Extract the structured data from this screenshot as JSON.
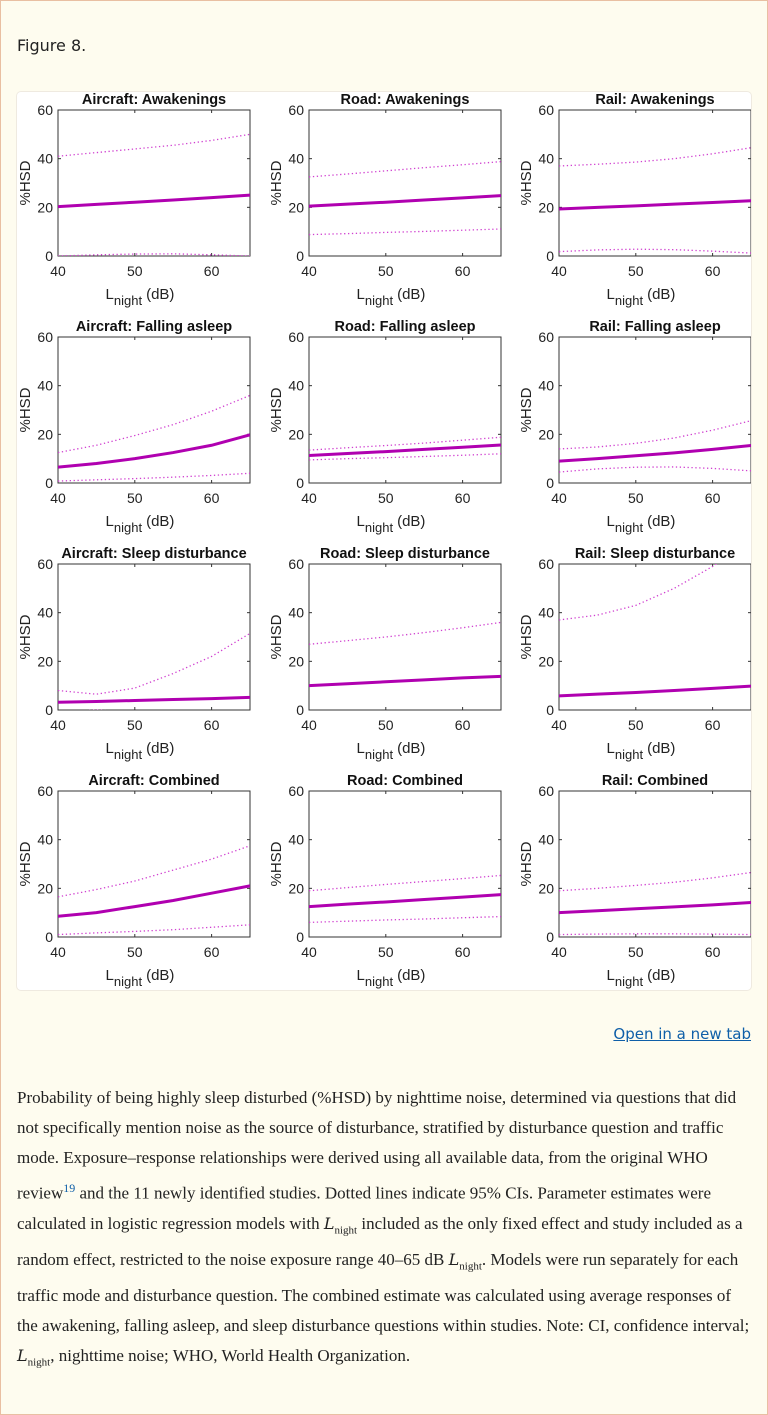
{
  "figure_label": "Figure 8.",
  "open_link": "Open in a new tab",
  "caption": {
    "p1": "Probability of being highly sleep disturbed (%HSD) by nighttime noise, determined via questions that did not specifically mention noise as the source of disturbance, stratified by disturbance question and traffic mode. Exposure–response relationships were derived using all available data, from the original WHO review",
    "ref": "19",
    "p2": " and the 11 newly identified studies. Dotted lines indicate 95% CIs. Parameter estimates were calculated in logistic regression models with ",
    "p3": " included as the only fixed effect and study included as a random effect, restricted to the noise exposure range 40–65 dB ",
    "p4": ". Models were run separately for each traffic mode and disturbance question. The combined estimate was calculated using average responses of the awakening, falling asleep, and sleep disturbance questions within studies. Note: CI, confidence interval; ",
    "p5": ", nighttime noise; WHO, World Health Organization.",
    "math_L": "L",
    "math_sub": "night"
  },
  "colors": {
    "series": "#b000b0",
    "ci": "#d040d0"
  },
  "chart_data": [
    {
      "type": "line",
      "title": "Aircraft: Awakenings",
      "xlabel": "L",
      "xlabel_sub": "night",
      "xlabel_unit": "(dB)",
      "ylabel": "%HSD",
      "xlim": [
        40,
        65
      ],
      "ylim": [
        0,
        60
      ],
      "xticks": [
        40,
        50,
        60
      ],
      "yticks": [
        0,
        20,
        40,
        60
      ],
      "x": [
        40,
        45,
        50,
        55,
        60,
        65
      ],
      "series": [
        {
          "style": "solid",
          "values": [
            20.3,
            21.2,
            22.1,
            23.0,
            24.0,
            25.0
          ]
        },
        {
          "style": "dotted",
          "values": [
            41,
            42.5,
            44,
            45.5,
            47.5,
            50
          ]
        },
        {
          "style": "dotted",
          "values": [
            0,
            0.5,
            0.8,
            0.9,
            0.5,
            0
          ]
        }
      ]
    },
    {
      "type": "line",
      "title": "Road: Awakenings",
      "xlabel": "L",
      "xlabel_sub": "night",
      "xlabel_unit": "(dB)",
      "ylabel": "%HSD",
      "xlim": [
        40,
        65
      ],
      "ylim": [
        0,
        60
      ],
      "xticks": [
        40,
        50,
        60
      ],
      "yticks": [
        0,
        20,
        40,
        60
      ],
      "x": [
        40,
        45,
        50,
        55,
        60,
        65
      ],
      "series": [
        {
          "style": "solid",
          "values": [
            20.5,
            21.3,
            22.1,
            23,
            23.9,
            24.8
          ]
        },
        {
          "style": "dotted",
          "values": [
            32.5,
            33.7,
            35,
            36.3,
            37.5,
            38.8
          ]
        },
        {
          "style": "dotted",
          "values": [
            8.8,
            9.2,
            9.7,
            10.1,
            10.6,
            11.1
          ]
        }
      ]
    },
    {
      "type": "line",
      "title": "Rail: Awakenings",
      "xlabel": "L",
      "xlabel_sub": "night",
      "xlabel_unit": "(dB)",
      "ylabel": "%HSD",
      "xlim": [
        40,
        65
      ],
      "ylim": [
        0,
        60
      ],
      "xticks": [
        40,
        50,
        60
      ],
      "yticks": [
        0,
        20,
        40,
        60
      ],
      "x": [
        40,
        45,
        50,
        55,
        60,
        65
      ],
      "series": [
        {
          "style": "solid",
          "values": [
            19.3,
            20,
            20.6,
            21.3,
            22,
            22.7
          ]
        },
        {
          "style": "dotted",
          "values": [
            37,
            37.7,
            38.6,
            40,
            42,
            44.5
          ]
        },
        {
          "style": "dotted",
          "values": [
            1.8,
            2.5,
            2.8,
            2.6,
            2,
            1.2
          ]
        }
      ]
    },
    {
      "type": "line",
      "title": "Aircraft: Falling asleep",
      "xlabel": "L",
      "xlabel_sub": "night",
      "xlabel_unit": "(dB)",
      "ylabel": "%HSD",
      "xlim": [
        40,
        65
      ],
      "ylim": [
        0,
        60
      ],
      "xticks": [
        40,
        50,
        60
      ],
      "yticks": [
        0,
        20,
        40,
        60
      ],
      "x": [
        40,
        45,
        50,
        55,
        60,
        65
      ],
      "series": [
        {
          "style": "solid",
          "values": [
            6.5,
            8,
            10,
            12.5,
            15.5,
            19.8
          ]
        },
        {
          "style": "dotted",
          "values": [
            12.5,
            15.5,
            19.5,
            24,
            29.5,
            36
          ]
        },
        {
          "style": "dotted",
          "values": [
            0.8,
            1.3,
            1.8,
            2.4,
            3.1,
            4.0
          ]
        }
      ]
    },
    {
      "type": "line",
      "title": "Road: Falling asleep",
      "xlabel": "L",
      "xlabel_sub": "night",
      "xlabel_unit": "(dB)",
      "ylabel": "%HSD",
      "xlim": [
        40,
        65
      ],
      "ylim": [
        0,
        60
      ],
      "xticks": [
        40,
        50,
        60
      ],
      "yticks": [
        0,
        20,
        40,
        60
      ],
      "x": [
        40,
        45,
        50,
        55,
        60,
        65
      ],
      "series": [
        {
          "style": "solid",
          "values": [
            11.3,
            12.1,
            12.9,
            13.8,
            14.7,
            15.6
          ]
        },
        {
          "style": "dotted",
          "values": [
            13.5,
            14.5,
            15.4,
            16.4,
            17.6,
            18.8
          ]
        },
        {
          "style": "dotted",
          "values": [
            9.5,
            10,
            10.4,
            10.9,
            11.4,
            12
          ]
        }
      ]
    },
    {
      "type": "line",
      "title": "Rail: Falling asleep",
      "xlabel": "L",
      "xlabel_sub": "night",
      "xlabel_unit": "(dB)",
      "ylabel": "%HSD",
      "xlim": [
        40,
        65
      ],
      "ylim": [
        0,
        60
      ],
      "xticks": [
        40,
        50,
        60
      ],
      "yticks": [
        0,
        20,
        40,
        60
      ],
      "x": [
        40,
        45,
        50,
        55,
        60,
        65
      ],
      "series": [
        {
          "style": "solid",
          "values": [
            9,
            10,
            11.2,
            12.4,
            13.8,
            15.4
          ]
        },
        {
          "style": "dotted",
          "values": [
            14,
            14.8,
            16.3,
            18.5,
            21.7,
            25.6
          ]
        },
        {
          "style": "dotted",
          "values": [
            4.5,
            5.8,
            6.5,
            6.6,
            6,
            5
          ]
        }
      ]
    },
    {
      "type": "line",
      "title": "Aircraft: Sleep disturbance",
      "xlabel": "L",
      "xlabel_sub": "night",
      "xlabel_unit": "(dB)",
      "ylabel": "%HSD",
      "xlim": [
        40,
        65
      ],
      "ylim": [
        0,
        60
      ],
      "xticks": [
        40,
        50,
        60
      ],
      "yticks": [
        0,
        20,
        40,
        60
      ],
      "x": [
        40,
        45,
        50,
        55,
        60,
        65
      ],
      "series": [
        {
          "style": "solid",
          "values": [
            3.2,
            3.5,
            3.9,
            4.3,
            4.7,
            5.2
          ]
        },
        {
          "style": "dotted",
          "values": [
            8,
            6.5,
            9,
            15,
            22,
            31.5
          ]
        },
        {
          "style": "dotted",
          "values": [
            -1,
            0,
            -1,
            -3,
            -5,
            -8
          ]
        }
      ]
    },
    {
      "type": "line",
      "title": "Road: Sleep disturbance",
      "xlabel": "L",
      "xlabel_sub": "night",
      "xlabel_unit": "(dB)",
      "ylabel": "%HSD",
      "xlim": [
        40,
        65
      ],
      "ylim": [
        0,
        60
      ],
      "xticks": [
        40,
        50,
        60
      ],
      "yticks": [
        0,
        20,
        40,
        60
      ],
      "x": [
        40,
        45,
        50,
        55,
        60,
        65
      ],
      "series": [
        {
          "style": "solid",
          "values": [
            10,
            10.8,
            11.6,
            12.4,
            13.2,
            13.8
          ]
        },
        {
          "style": "dotted",
          "values": [
            27,
            28.5,
            30,
            31.8,
            33.8,
            36
          ]
        }
      ]
    },
    {
      "type": "line",
      "title": "Rail: Sleep disturbance",
      "xlabel": "L",
      "xlabel_sub": "night",
      "xlabel_unit": "(dB)",
      "ylabel": "%HSD",
      "xlim": [
        40,
        65
      ],
      "ylim": [
        0,
        60
      ],
      "xticks": [
        40,
        50,
        60
      ],
      "yticks": [
        0,
        20,
        40,
        60
      ],
      "x": [
        40,
        45,
        50,
        55,
        60,
        65
      ],
      "series": [
        {
          "style": "solid",
          "values": [
            5.8,
            6.5,
            7.2,
            8,
            8.9,
            9.8
          ]
        },
        {
          "style": "dotted",
          "values": [
            37,
            39,
            43,
            50,
            59,
            70
          ]
        }
      ]
    },
    {
      "type": "line",
      "title": "Aircraft: Combined",
      "xlabel": "L",
      "xlabel_sub": "night",
      "xlabel_unit": "(dB)",
      "ylabel": "%HSD",
      "xlim": [
        40,
        65
      ],
      "ylim": [
        0,
        60
      ],
      "xticks": [
        40,
        50,
        60
      ],
      "yticks": [
        0,
        20,
        40,
        60
      ],
      "x": [
        40,
        45,
        50,
        55,
        60,
        65
      ],
      "series": [
        {
          "style": "solid",
          "values": [
            8.5,
            10,
            12.5,
            15,
            18,
            21
          ]
        },
        {
          "style": "dotted",
          "values": [
            16.5,
            19.5,
            23,
            27.5,
            32,
            37.5
          ]
        },
        {
          "style": "dotted",
          "values": [
            1,
            1.7,
            2.3,
            3,
            4,
            5
          ]
        }
      ]
    },
    {
      "type": "line",
      "title": "Road: Combined",
      "xlabel": "L",
      "xlabel_sub": "night",
      "xlabel_unit": "(dB)",
      "ylabel": "%HSD",
      "xlim": [
        40,
        65
      ],
      "ylim": [
        0,
        60
      ],
      "xticks": [
        40,
        50,
        60
      ],
      "yticks": [
        0,
        20,
        40,
        60
      ],
      "x": [
        40,
        45,
        50,
        55,
        60,
        65
      ],
      "series": [
        {
          "style": "solid",
          "values": [
            12.5,
            13.5,
            14.4,
            15.4,
            16.4,
            17.4
          ]
        },
        {
          "style": "dotted",
          "values": [
            19,
            20.3,
            21.6,
            22.8,
            24,
            25.3
          ]
        },
        {
          "style": "dotted",
          "values": [
            6,
            6.5,
            7,
            7.4,
            7.9,
            8.4
          ]
        }
      ]
    },
    {
      "type": "line",
      "title": "Rail: Combined",
      "xlabel": "L",
      "xlabel_sub": "night",
      "xlabel_unit": "(dB)",
      "ylabel": "%HSD",
      "xlim": [
        40,
        65
      ],
      "ylim": [
        0,
        60
      ],
      "xticks": [
        40,
        50,
        60
      ],
      "yticks": [
        0,
        20,
        40,
        60
      ],
      "x": [
        40,
        45,
        50,
        55,
        60,
        65
      ],
      "series": [
        {
          "style": "solid",
          "values": [
            10,
            10.8,
            11.6,
            12.4,
            13.2,
            14.2
          ]
        },
        {
          "style": "dotted",
          "values": [
            19,
            20,
            21.2,
            22.5,
            24.3,
            26.5
          ]
        },
        {
          "style": "dotted",
          "values": [
            1,
            1.2,
            1.3,
            1.3,
            1.2,
            1
          ]
        }
      ]
    }
  ]
}
